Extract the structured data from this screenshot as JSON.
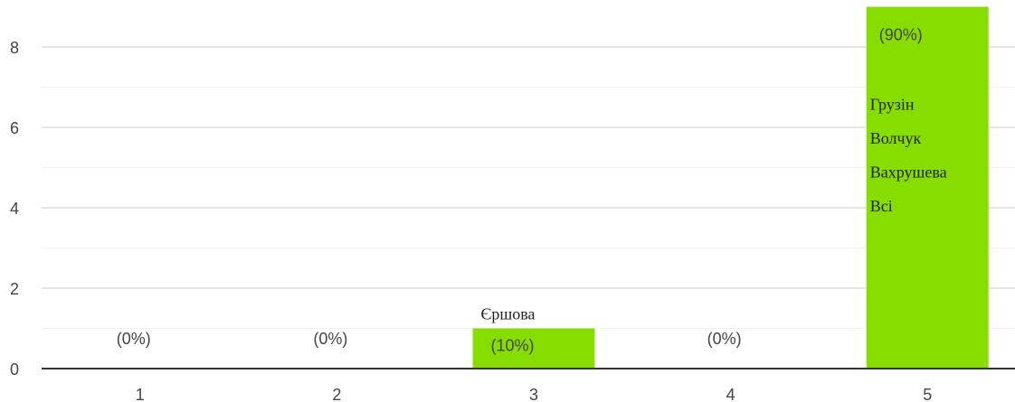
{
  "chart_data": {
    "type": "bar",
    "categories": [
      "1",
      "2",
      "3",
      "4",
      "5"
    ],
    "values": [
      0,
      0,
      1,
      0,
      9
    ],
    "percent_labels": [
      "(0%)",
      "(0%)",
      "(10%)",
      "(0%)",
      "(90%)"
    ],
    "name_labels": [
      [],
      [],
      [
        "Єршова"
      ],
      [],
      [
        "Грузін",
        "Волчук",
        "Вахрушева",
        "Всі"
      ]
    ],
    "color": "#87dc00",
    "ylim": [
      0,
      9
    ],
    "yticks": [
      0,
      2,
      4,
      6,
      8
    ],
    "minor_yticks": [
      1,
      3,
      5,
      7
    ],
    "grid": true
  }
}
